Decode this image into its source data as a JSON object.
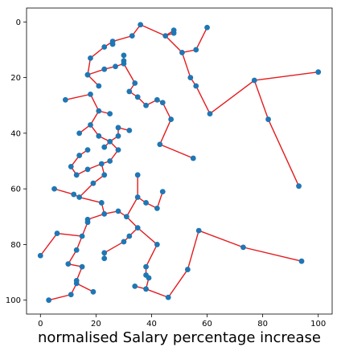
{
  "chart_data": {
    "type": "scatter",
    "title": "",
    "xlabel": "normalised Salary percentage increase",
    "ylabel": "",
    "xlim": [
      -5,
      105
    ],
    "ylim": [
      105,
      -5
    ],
    "y_inverted": true,
    "grid": false,
    "x_ticks": [
      0,
      20,
      40,
      60,
      80,
      100
    ],
    "y_ticks": [
      0,
      20,
      40,
      60,
      80,
      100
    ],
    "marker_color": "#1f77b4",
    "line_color": "#e41a1c",
    "points": [
      [
        36,
        1
      ],
      [
        45,
        5
      ],
      [
        48,
        3
      ],
      [
        48,
        4
      ],
      [
        51,
        11
      ],
      [
        56,
        10
      ],
      [
        60,
        2
      ],
      [
        33,
        5
      ],
      [
        26,
        7
      ],
      [
        26,
        8
      ],
      [
        23,
        9
      ],
      [
        18,
        13
      ],
      [
        17,
        19
      ],
      [
        17,
        19
      ],
      [
        21,
        23
      ],
      [
        23,
        17
      ],
      [
        27,
        16
      ],
      [
        30,
        12
      ],
      [
        30,
        14
      ],
      [
        30,
        15
      ],
      [
        34,
        22
      ],
      [
        32,
        25
      ],
      [
        35,
        27
      ],
      [
        38,
        30
      ],
      [
        42,
        28
      ],
      [
        44,
        29
      ],
      [
        47,
        35
      ],
      [
        43,
        44
      ],
      [
        55,
        49
      ],
      [
        9,
        28
      ],
      [
        18,
        26
      ],
      [
        21,
        32
      ],
      [
        25,
        33
      ],
      [
        18,
        37
      ],
      [
        14,
        40
      ],
      [
        21,
        41
      ],
      [
        17,
        46
      ],
      [
        14,
        48
      ],
      [
        23,
        45
      ],
      [
        25,
        43
      ],
      [
        28,
        38
      ],
      [
        28,
        41
      ],
      [
        28,
        46
      ],
      [
        25,
        50
      ],
      [
        32,
        39
      ],
      [
        11,
        52
      ],
      [
        13,
        55
      ],
      [
        17,
        53
      ],
      [
        22,
        51
      ],
      [
        23,
        55
      ],
      [
        19,
        58
      ],
      [
        14,
        63
      ],
      [
        12,
        62
      ],
      [
        5,
        60
      ],
      [
        22,
        65
      ],
      [
        23,
        69
      ],
      [
        28,
        68
      ],
      [
        31,
        70
      ],
      [
        35,
        74
      ],
      [
        35,
        63
      ],
      [
        35,
        55
      ],
      [
        38,
        65
      ],
      [
        42,
        67
      ],
      [
        44,
        61
      ],
      [
        17,
        71
      ],
      [
        17,
        72
      ],
      [
        15,
        77
      ],
      [
        6,
        76
      ],
      [
        13,
        82
      ],
      [
        10,
        87
      ],
      [
        15,
        88
      ],
      [
        13,
        94
      ],
      [
        13,
        93
      ],
      [
        19,
        97
      ],
      [
        11,
        98
      ],
      [
        3,
        100
      ],
      [
        0,
        84
      ],
      [
        23,
        85
      ],
      [
        23,
        83
      ],
      [
        32,
        77
      ],
      [
        30,
        79
      ],
      [
        42,
        80
      ],
      [
        38,
        88
      ],
      [
        38,
        91
      ],
      [
        39,
        92
      ],
      [
        38,
        96
      ],
      [
        34,
        95
      ],
      [
        46,
        99
      ],
      [
        53,
        89
      ],
      [
        57,
        75
      ],
      [
        73,
        81
      ],
      [
        94,
        86
      ],
      [
        100,
        18
      ],
      [
        77,
        21
      ],
      [
        82,
        35
      ],
      [
        93,
        59
      ],
      [
        56,
        23
      ],
      [
        54,
        20
      ],
      [
        61,
        33
      ]
    ],
    "segments": [
      [
        [
          36,
          1
        ],
        [
          45,
          5
        ]
      ],
      [
        [
          45,
          5
        ],
        [
          48,
          3
        ]
      ],
      [
        [
          45,
          5
        ],
        [
          48,
          4
        ]
      ],
      [
        [
          45,
          5
        ],
        [
          51,
          11
        ]
      ],
      [
        [
          51,
          11
        ],
        [
          56,
          10
        ]
      ],
      [
        [
          56,
          10
        ],
        [
          60,
          2
        ]
      ],
      [
        [
          36,
          1
        ],
        [
          33,
          5
        ]
      ],
      [
        [
          33,
          5
        ],
        [
          26,
          7
        ]
      ],
      [
        [
          26,
          7
        ],
        [
          26,
          8
        ]
      ],
      [
        [
          26,
          7
        ],
        [
          23,
          9
        ]
      ],
      [
        [
          23,
          9
        ],
        [
          18,
          13
        ]
      ],
      [
        [
          18,
          13
        ],
        [
          17,
          19
        ]
      ],
      [
        [
          17,
          19
        ],
        [
          21,
          23
        ]
      ],
      [
        [
          17,
          19
        ],
        [
          23,
          17
        ]
      ],
      [
        [
          23,
          17
        ],
        [
          27,
          16
        ]
      ],
      [
        [
          27,
          16
        ],
        [
          30,
          15
        ]
      ],
      [
        [
          30,
          15
        ],
        [
          30,
          14
        ]
      ],
      [
        [
          30,
          14
        ],
        [
          30,
          12
        ]
      ],
      [
        [
          30,
          15
        ],
        [
          34,
          22
        ]
      ],
      [
        [
          34,
          22
        ],
        [
          32,
          25
        ]
      ],
      [
        [
          32,
          25
        ],
        [
          35,
          27
        ]
      ],
      [
        [
          35,
          27
        ],
        [
          38,
          30
        ]
      ],
      [
        [
          38,
          30
        ],
        [
          42,
          28
        ]
      ],
      [
        [
          42,
          28
        ],
        [
          44,
          29
        ]
      ],
      [
        [
          44,
          29
        ],
        [
          47,
          35
        ]
      ],
      [
        [
          47,
          35
        ],
        [
          43,
          44
        ]
      ],
      [
        [
          43,
          44
        ],
        [
          55,
          49
        ]
      ],
      [
        [
          9,
          28
        ],
        [
          18,
          26
        ]
      ],
      [
        [
          18,
          26
        ],
        [
          21,
          32
        ]
      ],
      [
        [
          21,
          32
        ],
        [
          25,
          33
        ]
      ],
      [
        [
          21,
          32
        ],
        [
          18,
          37
        ]
      ],
      [
        [
          18,
          37
        ],
        [
          14,
          40
        ]
      ],
      [
        [
          18,
          37
        ],
        [
          21,
          41
        ]
      ],
      [
        [
          21,
          41
        ],
        [
          25,
          43
        ]
      ],
      [
        [
          25,
          43
        ],
        [
          23,
          45
        ]
      ],
      [
        [
          25,
          43
        ],
        [
          28,
          41
        ]
      ],
      [
        [
          28,
          41
        ],
        [
          28,
          38
        ]
      ],
      [
        [
          28,
          38
        ],
        [
          32,
          39
        ]
      ],
      [
        [
          25,
          43
        ],
        [
          28,
          46
        ]
      ],
      [
        [
          28,
          46
        ],
        [
          25,
          50
        ]
      ],
      [
        [
          25,
          50
        ],
        [
          22,
          51
        ]
      ],
      [
        [
          22,
          51
        ],
        [
          23,
          55
        ]
      ],
      [
        [
          22,
          51
        ],
        [
          17,
          53
        ]
      ],
      [
        [
          17,
          53
        ],
        [
          13,
          55
        ]
      ],
      [
        [
          13,
          55
        ],
        [
          11,
          52
        ]
      ],
      [
        [
          11,
          52
        ],
        [
          14,
          48
        ]
      ],
      [
        [
          14,
          48
        ],
        [
          17,
          46
        ]
      ],
      [
        [
          23,
          55
        ],
        [
          19,
          58
        ]
      ],
      [
        [
          19,
          58
        ],
        [
          14,
          63
        ]
      ],
      [
        [
          14,
          63
        ],
        [
          12,
          62
        ]
      ],
      [
        [
          12,
          62
        ],
        [
          5,
          60
        ]
      ],
      [
        [
          14,
          63
        ],
        [
          22,
          65
        ]
      ],
      [
        [
          22,
          65
        ],
        [
          23,
          69
        ]
      ],
      [
        [
          23,
          69
        ],
        [
          28,
          68
        ]
      ],
      [
        [
          28,
          68
        ],
        [
          31,
          70
        ]
      ],
      [
        [
          31,
          70
        ],
        [
          35,
          74
        ]
      ],
      [
        [
          31,
          70
        ],
        [
          35,
          63
        ]
      ],
      [
        [
          35,
          63
        ],
        [
          35,
          55
        ]
      ],
      [
        [
          35,
          63
        ],
        [
          38,
          65
        ]
      ],
      [
        [
          38,
          65
        ],
        [
          42,
          67
        ]
      ],
      [
        [
          42,
          67
        ],
        [
          44,
          61
        ]
      ],
      [
        [
          23,
          69
        ],
        [
          17,
          71
        ]
      ],
      [
        [
          17,
          71
        ],
        [
          17,
          72
        ]
      ],
      [
        [
          17,
          72
        ],
        [
          15,
          77
        ]
      ],
      [
        [
          15,
          77
        ],
        [
          6,
          76
        ]
      ],
      [
        [
          15,
          77
        ],
        [
          13,
          82
        ]
      ],
      [
        [
          13,
          82
        ],
        [
          10,
          87
        ]
      ],
      [
        [
          10,
          87
        ],
        [
          15,
          88
        ]
      ],
      [
        [
          15,
          88
        ],
        [
          13,
          93
        ]
      ],
      [
        [
          13,
          93
        ],
        [
          13,
          94
        ]
      ],
      [
        [
          13,
          94
        ],
        [
          19,
          97
        ]
      ],
      [
        [
          13,
          94
        ],
        [
          11,
          98
        ]
      ],
      [
        [
          11,
          98
        ],
        [
          3,
          100
        ]
      ],
      [
        [
          6,
          76
        ],
        [
          0,
          84
        ]
      ],
      [
        [
          35,
          74
        ],
        [
          32,
          77
        ]
      ],
      [
        [
          32,
          77
        ],
        [
          30,
          79
        ]
      ],
      [
        [
          30,
          79
        ],
        [
          23,
          83
        ]
      ],
      [
        [
          23,
          83
        ],
        [
          23,
          85
        ]
      ],
      [
        [
          35,
          74
        ],
        [
          42,
          80
        ]
      ],
      [
        [
          42,
          80
        ],
        [
          38,
          88
        ]
      ],
      [
        [
          38,
          88
        ],
        [
          38,
          91
        ]
      ],
      [
        [
          38,
          91
        ],
        [
          39,
          92
        ]
      ],
      [
        [
          39,
          92
        ],
        [
          38,
          96
        ]
      ],
      [
        [
          38,
          96
        ],
        [
          34,
          95
        ]
      ],
      [
        [
          38,
          96
        ],
        [
          46,
          99
        ]
      ],
      [
        [
          46,
          99
        ],
        [
          53,
          89
        ]
      ],
      [
        [
          53,
          89
        ],
        [
          57,
          75
        ]
      ],
      [
        [
          57,
          75
        ],
        [
          73,
          81
        ]
      ],
      [
        [
          73,
          81
        ],
        [
          94,
          86
        ]
      ],
      [
        [
          54,
          20
        ],
        [
          56,
          23
        ]
      ],
      [
        [
          56,
          23
        ],
        [
          61,
          33
        ]
      ],
      [
        [
          51,
          11
        ],
        [
          54,
          20
        ]
      ],
      [
        [
          61,
          33
        ],
        [
          77,
          21
        ]
      ],
      [
        [
          77,
          21
        ],
        [
          100,
          18
        ]
      ],
      [
        [
          77,
          21
        ],
        [
          82,
          35
        ]
      ],
      [
        [
          82,
          35
        ],
        [
          93,
          59
        ]
      ]
    ]
  }
}
